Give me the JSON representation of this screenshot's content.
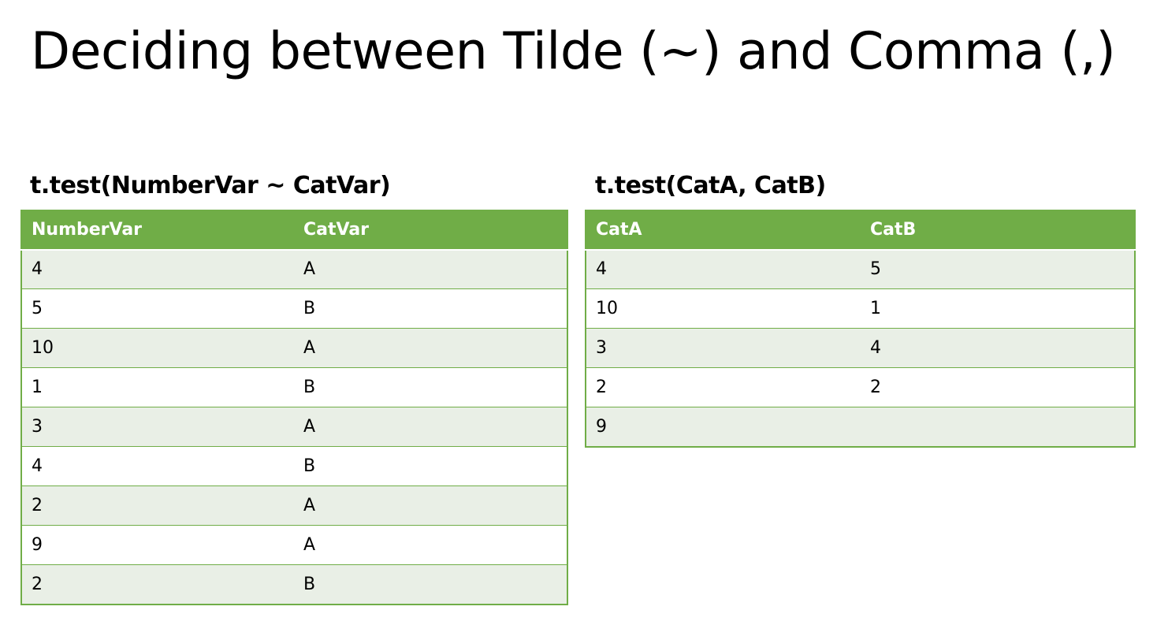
{
  "title": "Deciding between Tilde (~) and Comma (,)",
  "left_panel": {
    "heading": "t.test(NumberVar ~ CatVar)",
    "columns": [
      "NumberVar",
      "CatVar"
    ],
    "rows": [
      [
        "4",
        "A"
      ],
      [
        "5",
        "B"
      ],
      [
        "10",
        "A"
      ],
      [
        "1",
        "B"
      ],
      [
        "3",
        "A"
      ],
      [
        "4",
        "B"
      ],
      [
        "2",
        "A"
      ],
      [
        "9",
        "A"
      ],
      [
        "2",
        "B"
      ]
    ]
  },
  "right_panel": {
    "heading": "t.test(CatA, CatB)",
    "columns": [
      "CatA",
      "CatB"
    ],
    "rows": [
      [
        "4",
        "5"
      ],
      [
        "10",
        "1"
      ],
      [
        "3",
        "4"
      ],
      [
        "2",
        "2"
      ],
      [
        "9",
        ""
      ]
    ]
  },
  "colors": {
    "header_green": "#70ad47",
    "band_light": "#e9efe6",
    "header_text": "#ffffff"
  }
}
